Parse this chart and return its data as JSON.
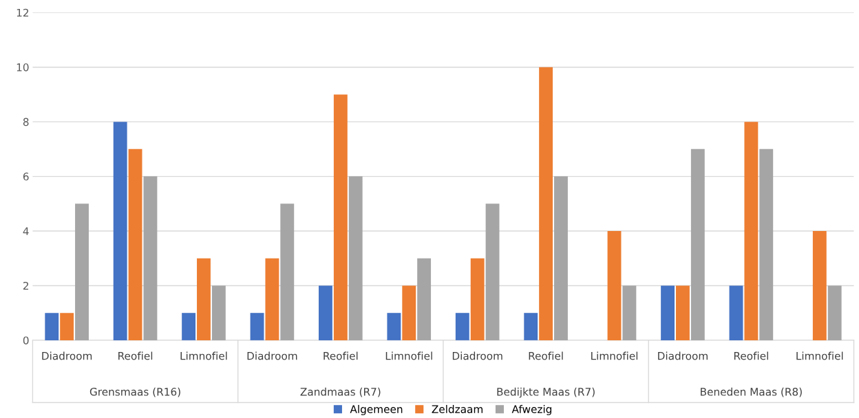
{
  "chart_data": {
    "type": "bar",
    "categories": [
      "Diadroom",
      "Reofiel",
      "Limnofiel",
      "Diadroom",
      "Reofiel",
      "Limnofiel",
      "Diadroom",
      "Reofiel",
      "Limnofiel",
      "Diadroom",
      "Reofiel",
      "Limnofiel"
    ],
    "annotations": [
      "Grensmaas (R16)",
      "Zandmaas (R7)",
      "Bedijkte Maas (R7)",
      "Beneden Maas (R8)"
    ],
    "series": [
      {
        "name": "Algemeen",
        "color": "#4472c4",
        "values": [
          1,
          8,
          1,
          1,
          2,
          1,
          1,
          1,
          0,
          2,
          2,
          0
        ]
      },
      {
        "name": "Zeldzaam",
        "color": "#ed7d31",
        "values": [
          1,
          7,
          3,
          3,
          9,
          2,
          3,
          10,
          4,
          2,
          8,
          4
        ]
      },
      {
        "name": "Afwezig",
        "color": "#a5a5a5",
        "values": [
          5,
          6,
          2,
          5,
          6,
          3,
          5,
          6,
          2,
          7,
          7,
          2
        ]
      }
    ],
    "ylim": [
      0,
      12
    ],
    "yticks": [
      0,
      2,
      4,
      6,
      8,
      10,
      12
    ],
    "grid": "y",
    "legend": "bottom"
  }
}
